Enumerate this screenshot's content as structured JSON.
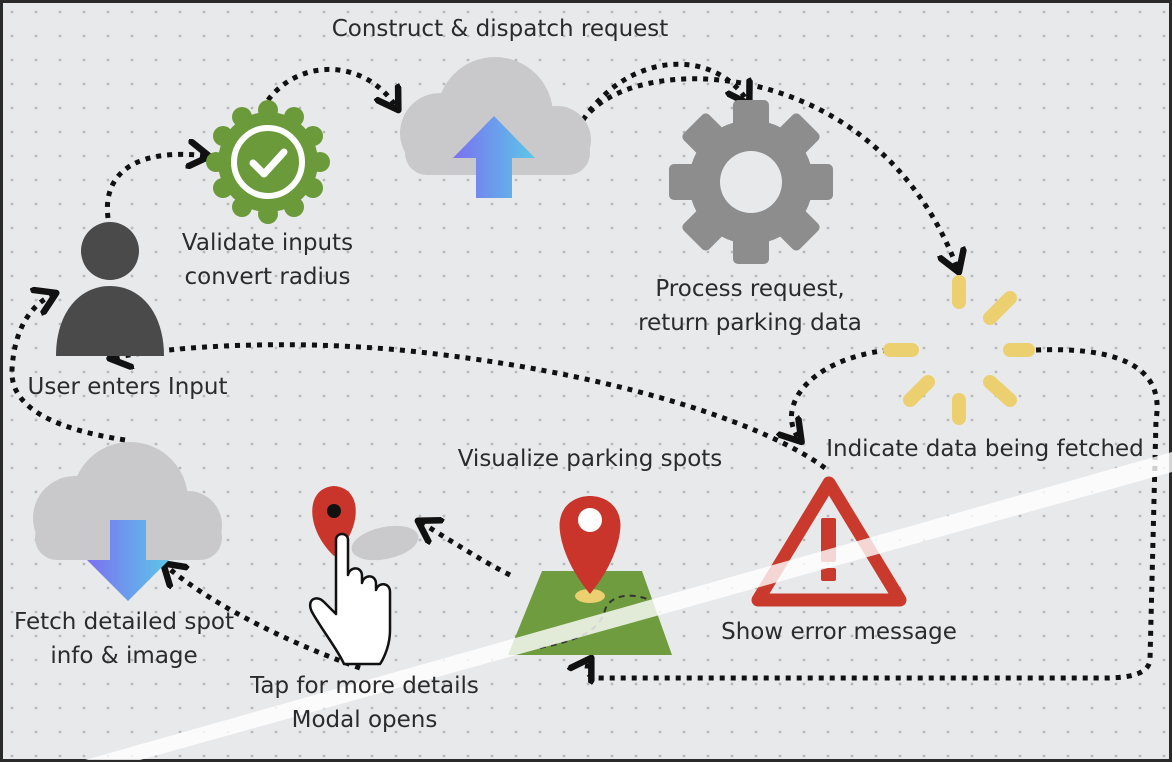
{
  "labels": {
    "user": "User enters Input",
    "validate_line1": "Validate inputs",
    "validate_line2": "convert radius",
    "construct": "Construct & dispatch request",
    "process_line1": "Process request,",
    "process_line2": "return parking data",
    "indicate": "Indicate data being fetched",
    "visualize": "Visualize parking spots",
    "error": "Show error message",
    "tap_line1": "Tap for more details",
    "tap_line2": "Modal opens",
    "fetch_line1": "Fetch detailed spot",
    "fetch_line2": "info & image"
  },
  "icons": {
    "user": "person-icon",
    "validate": "checkmark-badge-icon",
    "upload": "cloud-upload-icon",
    "process": "gear-icon",
    "loading": "loading-spinner-icon",
    "map": "map-pin-icon",
    "error": "warning-triangle-icon",
    "tap": "tap-hand-icon",
    "download": "cloud-download-icon"
  },
  "colors": {
    "background": "#e8e9eb",
    "grid_dot": "#b6b8bb",
    "text": "#2b2b2b",
    "arrow": "#111111",
    "badge_green": "#6b9a3b",
    "person": "#4a4a4a",
    "cloud": "#c9c9cb",
    "arrow_gradient_start": "#7b70f0",
    "arrow_gradient_end": "#5bc7e8",
    "gear": "#8d8d8d",
    "spinner": "#eccf6f",
    "pin_red": "#c9342b",
    "map_green": "#6e9c3e",
    "error_red": "#c93a2c"
  }
}
